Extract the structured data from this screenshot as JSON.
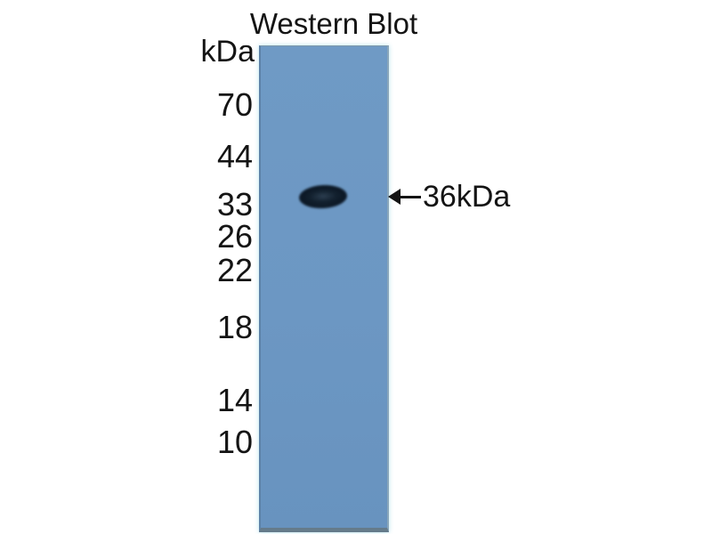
{
  "figure": {
    "title": "Western Blot",
    "unit_label": "kDa",
    "type": "western-blot-gel-image"
  },
  "ladder": {
    "markers": [
      {
        "label": "70"
      },
      {
        "label": "44"
      },
      {
        "label": "33"
      },
      {
        "label": "26"
      },
      {
        "label": "22"
      },
      {
        "label": "18"
      },
      {
        "label": "14"
      },
      {
        "label": "10"
      }
    ]
  },
  "band": {
    "annotation_label": "36kDa",
    "approx_position_kda": "between 33 and 44 markers",
    "lane": "single sample lane"
  },
  "colors": {
    "lane_blue": "#6c97c3",
    "band_dark": "#0f1c29",
    "text": "#141414",
    "background": "#ffffff"
  }
}
